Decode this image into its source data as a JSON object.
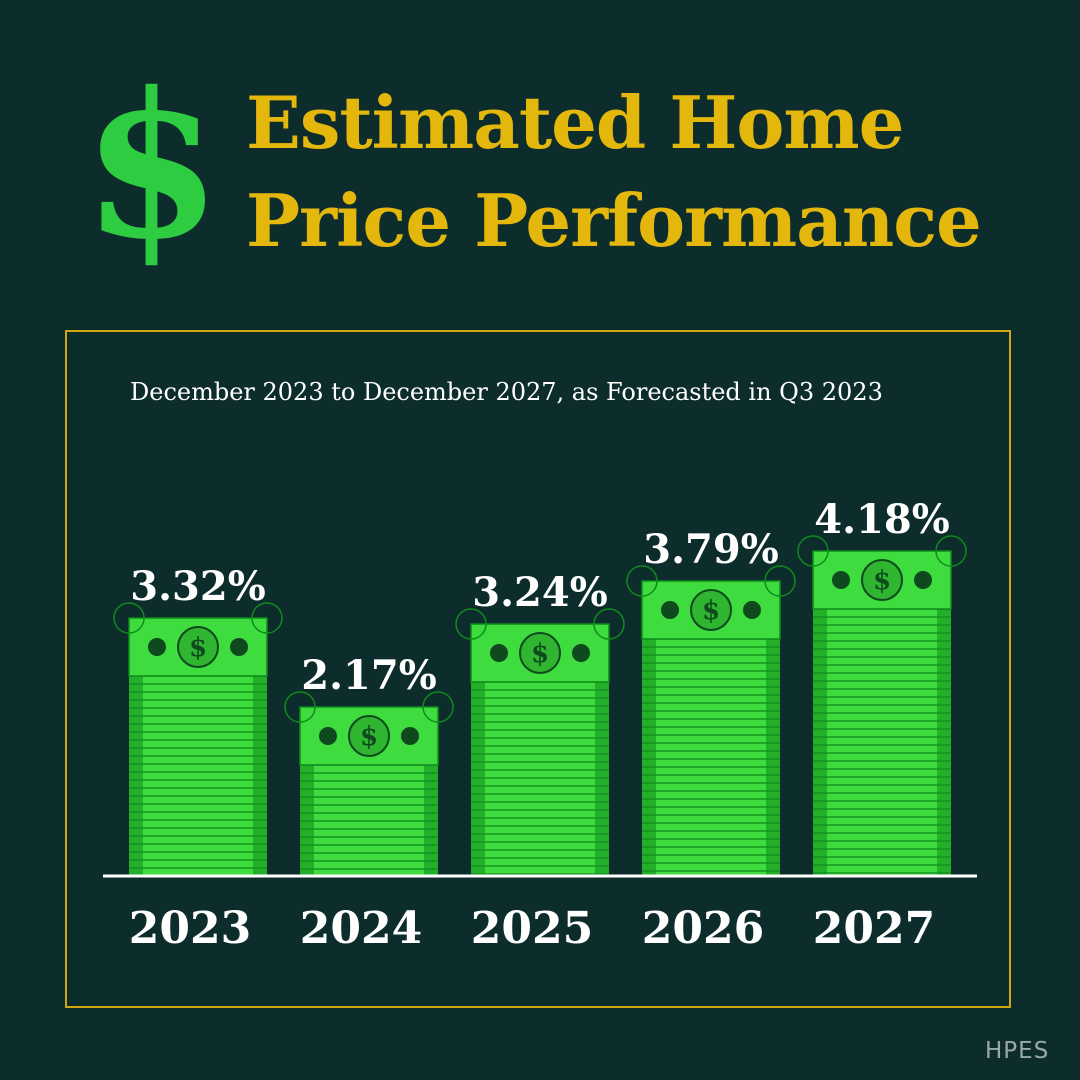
{
  "header": {
    "icon": "dollar-sign-icon",
    "dollar_glyph": "$",
    "title_line1": "Estimated Home",
    "title_line2": "Price Performance"
  },
  "subtitle": "December 2023 to December 2027, as Forecasted in Q3 2023",
  "logo_text": "HPES",
  "colors": {
    "background": "#0c2d2b",
    "title": "#e4b70d",
    "frame": "#d2a712",
    "money_light": "#3edc3e",
    "money_dark": "#0f8a1c",
    "dollar_icon": "#2ecc40"
  },
  "chart_data": {
    "type": "bar",
    "title": "Estimated Home Price Performance",
    "subtitle": "December 2023 to December 2027, as Forecasted in Q3 2023",
    "categories": [
      "2023",
      "2024",
      "2025",
      "2026",
      "2027"
    ],
    "values": [
      3.32,
      2.17,
      3.24,
      3.79,
      4.18
    ],
    "value_labels": [
      "3.32%",
      "2.17%",
      "3.24%",
      "3.79%",
      "4.18%"
    ],
    "xlabel": "",
    "ylabel": "",
    "ylim": [
      0,
      4.18
    ],
    "grid": false,
    "legend": "none"
  }
}
